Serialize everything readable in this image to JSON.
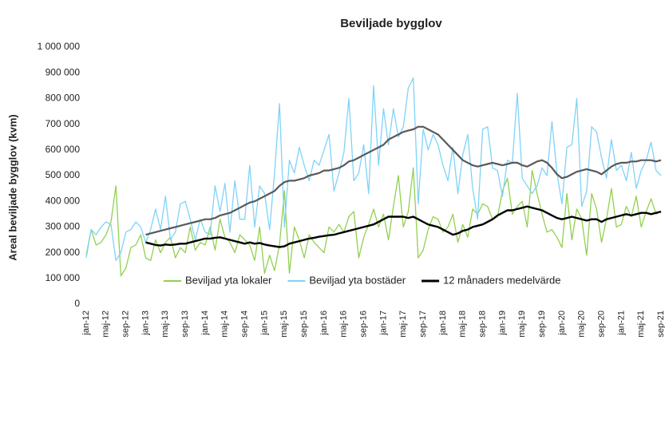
{
  "chart_data": {
    "type": "line",
    "title": "Beviljade bygglov",
    "y_label": "Areal beviljade bygglov (kvm)",
    "categories": [
      "jan-12",
      null,
      null,
      null,
      "maj-12",
      null,
      null,
      null,
      "sep-12",
      null,
      null,
      null,
      "jan-13",
      null,
      null,
      null,
      "maj-13",
      null,
      null,
      null,
      "sep-13",
      null,
      null,
      null,
      "jan-14",
      null,
      null,
      null,
      "maj-14",
      null,
      null,
      null,
      "sep-14",
      null,
      null,
      null,
      "jan-15",
      null,
      null,
      null,
      "maj-15",
      null,
      null,
      null,
      "sep-15",
      null,
      null,
      null,
      "jan-16",
      null,
      null,
      null,
      "maj-16",
      null,
      null,
      null,
      "sep-16",
      null,
      null,
      null,
      "jan-17",
      null,
      null,
      null,
      "maj-17",
      null,
      null,
      null,
      "sep-17",
      null,
      null,
      null,
      "jan-18",
      null,
      null,
      null,
      "maj-18",
      null,
      null,
      null,
      "sep-18",
      null,
      null,
      null,
      "jan-19",
      null,
      null,
      null,
      "maj-19",
      null,
      null,
      null,
      "sep-19",
      null,
      null,
      null,
      "jan-20",
      null,
      null,
      null,
      "maj-20",
      null,
      null,
      null,
      "sep-20",
      null,
      null,
      null,
      "jan-21",
      null,
      null,
      null,
      "maj-21",
      null,
      null,
      null,
      "sep-21"
    ],
    "series": [
      {
        "name": "Beviljad yta lokaler",
        "color": "#92d050",
        "width": 1.3,
        "values": [
          190000,
          290000,
          230000,
          240000,
          270000,
          320000,
          460000,
          110000,
          140000,
          220000,
          230000,
          270000,
          180000,
          170000,
          250000,
          200000,
          240000,
          260000,
          180000,
          220000,
          200000,
          300000,
          210000,
          240000,
          230000,
          300000,
          210000,
          330000,
          260000,
          240000,
          200000,
          270000,
          250000,
          230000,
          170000,
          300000,
          120000,
          190000,
          130000,
          230000,
          440000,
          120000,
          300000,
          250000,
          180000,
          270000,
          240000,
          220000,
          200000,
          300000,
          280000,
          310000,
          280000,
          340000,
          360000,
          180000,
          260000,
          310000,
          370000,
          300000,
          350000,
          250000,
          380000,
          500000,
          300000,
          360000,
          530000,
          180000,
          210000,
          290000,
          340000,
          330000,
          280000,
          300000,
          350000,
          240000,
          310000,
          260000,
          370000,
          350000,
          390000,
          380000,
          330000,
          340000,
          440000,
          490000,
          350000,
          380000,
          400000,
          300000,
          520000,
          430000,
          350000,
          280000,
          290000,
          260000,
          220000,
          430000,
          250000,
          370000,
          330000,
          190000,
          430000,
          370000,
          240000,
          330000,
          450000,
          300000,
          310000,
          380000,
          340000,
          420000,
          300000,
          360000,
          410000,
          350000,
          360000
        ]
      },
      {
        "name": "Beviljad yta bostäder",
        "color": "#7fd3f7",
        "width": 1.3,
        "values": [
          180000,
          290000,
          270000,
          300000,
          320000,
          310000,
          170000,
          200000,
          280000,
          290000,
          320000,
          300000,
          240000,
          290000,
          370000,
          290000,
          420000,
          250000,
          280000,
          390000,
          400000,
          330000,
          250000,
          330000,
          280000,
          270000,
          460000,
          360000,
          470000,
          280000,
          480000,
          330000,
          330000,
          540000,
          300000,
          460000,
          430000,
          290000,
          510000,
          780000,
          300000,
          560000,
          510000,
          610000,
          540000,
          480000,
          560000,
          540000,
          600000,
          660000,
          440000,
          510000,
          590000,
          800000,
          480000,
          510000,
          620000,
          430000,
          850000,
          540000,
          760000,
          620000,
          760000,
          650000,
          690000,
          840000,
          880000,
          390000,
          680000,
          600000,
          660000,
          620000,
          540000,
          480000,
          610000,
          430000,
          580000,
          660000,
          450000,
          330000,
          680000,
          690000,
          530000,
          520000,
          420000,
          560000,
          550000,
          820000,
          490000,
          460000,
          430000,
          460000,
          530000,
          500000,
          710000,
          510000,
          390000,
          610000,
          620000,
          800000,
          380000,
          440000,
          690000,
          670000,
          570000,
          490000,
          640000,
          520000,
          540000,
          480000,
          590000,
          450000,
          520000,
          560000,
          630000,
          520000,
          500000
        ]
      },
      {
        "color": "#595959",
        "width": 2.2,
        "values": [
          null,
          null,
          null,
          null,
          null,
          null,
          null,
          null,
          null,
          null,
          null,
          null,
          270000,
          275000,
          280000,
          285000,
          290000,
          295000,
          300000,
          305000,
          310000,
          315000,
          320000,
          325000,
          330000,
          330000,
          335000,
          345000,
          350000,
          355000,
          365000,
          375000,
          385000,
          395000,
          400000,
          410000,
          420000,
          430000,
          440000,
          460000,
          475000,
          480000,
          480000,
          485000,
          490000,
          500000,
          505000,
          510000,
          520000,
          520000,
          525000,
          530000,
          540000,
          555000,
          560000,
          570000,
          580000,
          590000,
          600000,
          610000,
          620000,
          640000,
          650000,
          660000,
          670000,
          675000,
          680000,
          690000,
          690000,
          680000,
          670000,
          660000,
          640000,
          620000,
          600000,
          580000,
          560000,
          550000,
          540000,
          535000,
          540000,
          545000,
          550000,
          545000,
          540000,
          545000,
          550000,
          550000,
          540000,
          535000,
          545000,
          555000,
          560000,
          550000,
          530000,
          505000,
          490000,
          495000,
          505000,
          515000,
          520000,
          525000,
          520000,
          515000,
          505000,
          520000,
          535000,
          545000,
          550000,
          550000,
          555000,
          555000,
          560000,
          560000,
          560000,
          555000,
          560000
        ]
      },
      {
        "name": "12 månaders medelvärde",
        "color": "#000000",
        "width": 2.4,
        "values": [
          null,
          null,
          null,
          null,
          null,
          null,
          null,
          null,
          null,
          null,
          null,
          null,
          240000,
          235000,
          230000,
          228000,
          232000,
          230000,
          232000,
          235000,
          235000,
          240000,
          245000,
          250000,
          255000,
          255000,
          258000,
          260000,
          255000,
          250000,
          245000,
          240000,
          235000,
          240000,
          235000,
          238000,
          232000,
          228000,
          225000,
          222000,
          225000,
          235000,
          240000,
          245000,
          250000,
          255000,
          258000,
          262000,
          265000,
          268000,
          270000,
          275000,
          280000,
          285000,
          290000,
          295000,
          300000,
          305000,
          310000,
          320000,
          330000,
          340000,
          340000,
          340000,
          340000,
          335000,
          340000,
          330000,
          320000,
          310000,
          305000,
          300000,
          290000,
          280000,
          270000,
          275000,
          285000,
          290000,
          300000,
          305000,
          310000,
          320000,
          330000,
          345000,
          355000,
          365000,
          365000,
          370000,
          375000,
          380000,
          375000,
          370000,
          365000,
          355000,
          345000,
          335000,
          330000,
          335000,
          340000,
          335000,
          330000,
          325000,
          330000,
          330000,
          320000,
          330000,
          335000,
          340000,
          345000,
          350000,
          345000,
          350000,
          355000,
          355000,
          350000,
          355000,
          360000
        ]
      }
    ],
    "ylim": [
      0,
      1000000
    ],
    "yticks": [
      0,
      {
        "value": 100000,
        "label": "100 000"
      },
      {
        "value": 200000,
        "label": "200 000"
      },
      {
        "value": 300000,
        "label": "300 000"
      },
      {
        "value": 400000,
        "label": "400 000"
      },
      {
        "value": 500000,
        "label": "500 000"
      },
      {
        "value": 600000,
        "label": "600 000"
      },
      {
        "value": 700000,
        "label": "700 000"
      },
      {
        "value": 800000,
        "label": "800 000"
      },
      {
        "value": 900000,
        "label": "900 000"
      },
      {
        "value": 1000000,
        "label": "1 000 000"
      }
    ],
    "grid": false,
    "legend": "bottom"
  }
}
